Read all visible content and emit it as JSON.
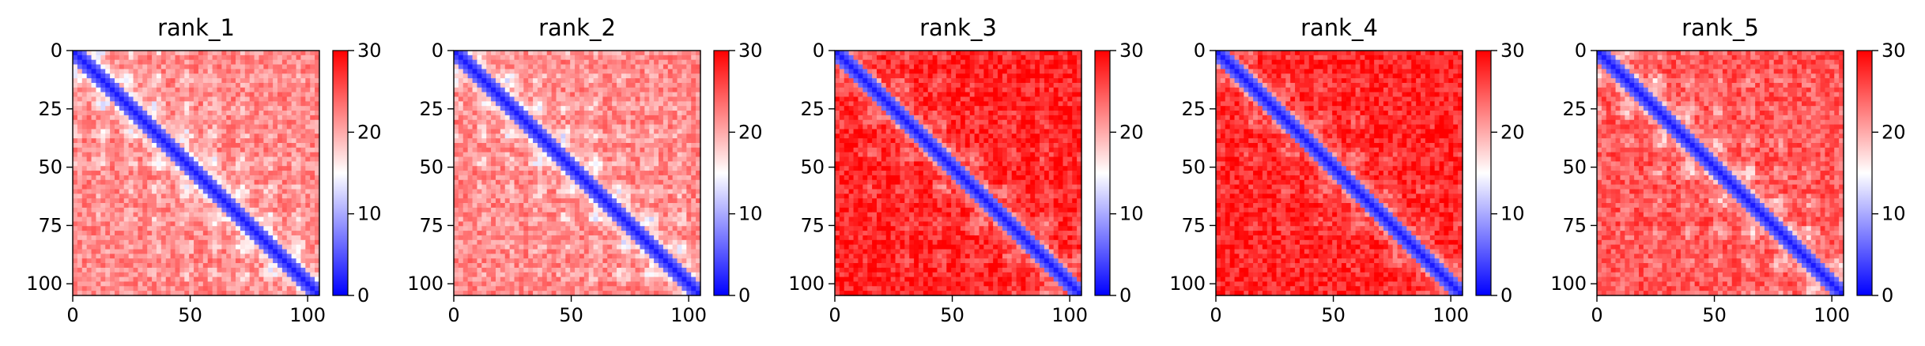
{
  "chart_data": [
    {
      "type": "heatmap",
      "title": "rank_1",
      "xticks": [
        "0",
        "50",
        "100"
      ],
      "yticks": [
        "0",
        "25",
        "50",
        "75",
        "100"
      ],
      "xlim": [
        0,
        105
      ],
      "ylim": [
        105,
        0
      ],
      "colorbar": {
        "ticks": [
          "0",
          "10",
          "20",
          "30"
        ],
        "range": [
          0,
          30
        ],
        "colors": [
          "#0000ff",
          "#ffffff",
          "#ff0000"
        ]
      },
      "pattern": {
        "diag_band": 5,
        "base": 22,
        "blob_depth": 8,
        "blob_period": 24
      }
    },
    {
      "type": "heatmap",
      "title": "rank_2",
      "xticks": [
        "0",
        "50",
        "100"
      ],
      "yticks": [
        "0",
        "25",
        "50",
        "75",
        "100"
      ],
      "xlim": [
        0,
        105
      ],
      "ylim": [
        105,
        0
      ],
      "colorbar": {
        "ticks": [
          "0",
          "10",
          "20",
          "30"
        ],
        "range": [
          0,
          30
        ],
        "colors": [
          "#0000ff",
          "#ffffff",
          "#ff0000"
        ]
      },
      "pattern": {
        "diag_band": 5,
        "base": 22,
        "blob_depth": 8,
        "blob_period": 24
      }
    },
    {
      "type": "heatmap",
      "title": "rank_3",
      "xticks": [
        "0",
        "50",
        "100"
      ],
      "yticks": [
        "0",
        "25",
        "50",
        "75",
        "100"
      ],
      "xlim": [
        0,
        105
      ],
      "ylim": [
        105,
        0
      ],
      "colorbar": {
        "ticks": [
          "0",
          "10",
          "20",
          "30"
        ],
        "range": [
          0,
          30
        ],
        "colors": [
          "#0000ff",
          "#ffffff",
          "#ff0000"
        ]
      },
      "pattern": {
        "diag_band": 5,
        "base": 28,
        "blob_depth": 6,
        "blob_period": 30
      }
    },
    {
      "type": "heatmap",
      "title": "rank_4",
      "xticks": [
        "0",
        "50",
        "100"
      ],
      "yticks": [
        "0",
        "25",
        "50",
        "75",
        "100"
      ],
      "xlim": [
        0,
        105
      ],
      "ylim": [
        105,
        0
      ],
      "colorbar": {
        "ticks": [
          "0",
          "10",
          "20",
          "30"
        ],
        "range": [
          0,
          30
        ],
        "colors": [
          "#0000ff",
          "#ffffff",
          "#ff0000"
        ]
      },
      "pattern": {
        "diag_band": 5,
        "base": 28,
        "blob_depth": 5,
        "blob_period": 30
      }
    },
    {
      "type": "heatmap",
      "title": "rank_5",
      "xticks": [
        "0",
        "50",
        "100"
      ],
      "yticks": [
        "0",
        "25",
        "50",
        "75",
        "100"
      ],
      "xlim": [
        0,
        105
      ],
      "ylim": [
        105,
        0
      ],
      "colorbar": {
        "ticks": [
          "0",
          "10",
          "20",
          "30"
        ],
        "range": [
          0,
          30
        ],
        "colors": [
          "#0000ff",
          "#ffffff",
          "#ff0000"
        ]
      },
      "pattern": {
        "diag_band": 5,
        "base": 25,
        "blob_depth": 8,
        "blob_period": 26
      }
    }
  ]
}
